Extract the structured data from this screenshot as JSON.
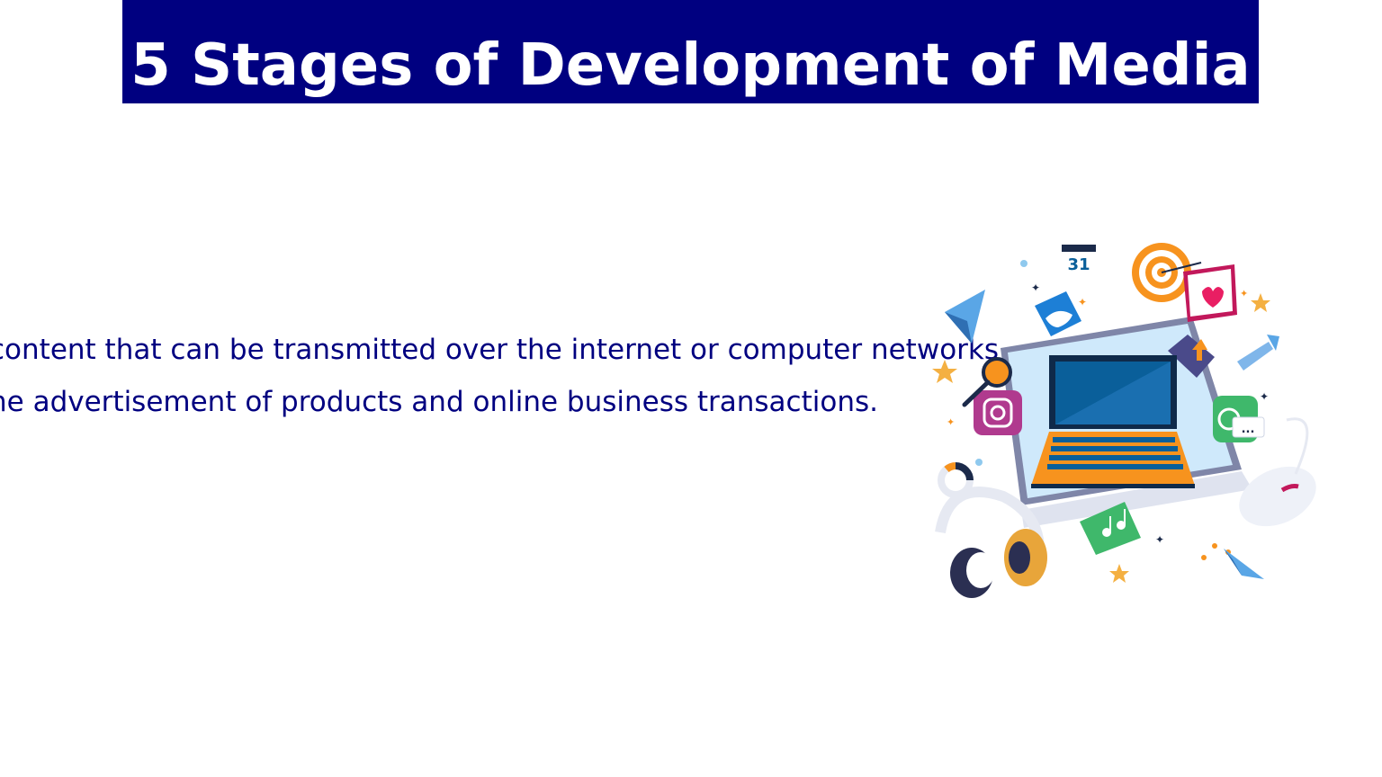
{
  "slide": {
    "title": "5 Stages of Development of Media",
    "lines": [
      "content that can be transmitted over the internet or computer networks",
      "he advertisement of products and online business transactions."
    ]
  },
  "illustration": {
    "calendar_day": "31",
    "chat_dots": "...",
    "icons": [
      "laptop-icon",
      "calendar-icon",
      "target-icon",
      "heart-icon",
      "twitter-bird-icon",
      "instagram-icon",
      "facebook-icon",
      "magnifier-icon",
      "whatsapp-icon",
      "music-note-icon",
      "headphones-icon",
      "mouse-icon",
      "paper-plane-icon",
      "chart-donut-icon",
      "star-icon"
    ]
  },
  "colors": {
    "title_bg": "#000080",
    "title_text": "#ffffff",
    "body_text": "#000080",
    "laptop_screen": "#0a5f9a",
    "laptop_keyboard": "#f7931e"
  }
}
